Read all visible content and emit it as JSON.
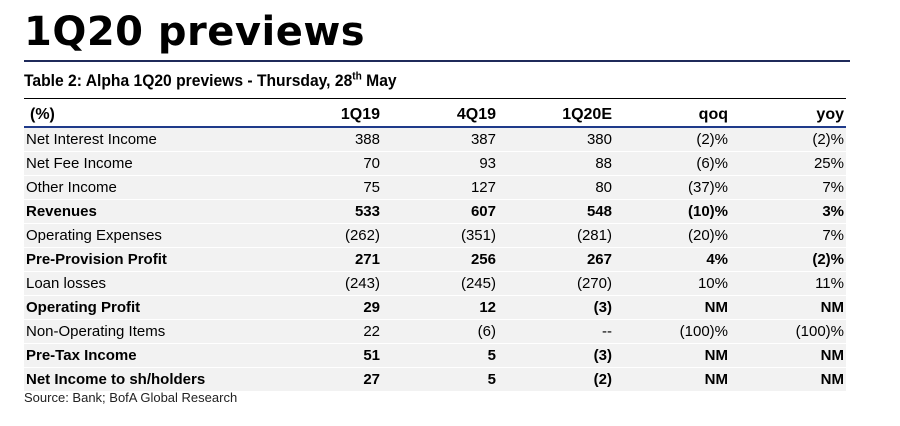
{
  "title": "1Q20 previews",
  "caption": {
    "text": "Table 2: Alpha 1Q20 previews - Thursday, 28",
    "superscript": "th",
    "suffix": " May"
  },
  "table": {
    "headers": [
      "(%)",
      "1Q19",
      "4Q19",
      "1Q20E",
      "qoq",
      "yoy"
    ],
    "rows": [
      {
        "label": "Net Interest Income",
        "values": [
          "388",
          "387",
          "380",
          "(2)%",
          "(2)%"
        ],
        "bold": false
      },
      {
        "label": "Net Fee Income",
        "values": [
          "70",
          "93",
          "88",
          "(6)%",
          "25%"
        ],
        "bold": false
      },
      {
        "label": "Other Income",
        "values": [
          "75",
          "127",
          "80",
          "(37)%",
          "7%"
        ],
        "bold": false
      },
      {
        "label": "Revenues",
        "values": [
          "533",
          "607",
          "548",
          "(10)%",
          "3%"
        ],
        "bold": true
      },
      {
        "label": "Operating Expenses",
        "values": [
          "(262)",
          "(351)",
          "(281)",
          "(20)%",
          "7%"
        ],
        "bold": false
      },
      {
        "label": "Pre-Provision Profit",
        "values": [
          "271",
          "256",
          "267",
          "4%",
          "(2)%"
        ],
        "bold": true
      },
      {
        "label": "Loan losses",
        "values": [
          "(243)",
          "(245)",
          "(270)",
          "10%",
          "11%"
        ],
        "bold": false
      },
      {
        "label": "Operating Profit",
        "values": [
          "29",
          "12",
          "(3)",
          "NM",
          "NM"
        ],
        "bold": true
      },
      {
        "label": "Non-Operating Items",
        "values": [
          "22",
          "(6)",
          "--",
          "(100)%",
          "(100)%"
        ],
        "bold": false
      },
      {
        "label": "Pre-Tax Income",
        "values": [
          "51",
          "5",
          "(3)",
          "NM",
          "NM"
        ],
        "bold": true
      },
      {
        "label": "Net Income to sh/holders",
        "values": [
          "27",
          "5",
          "(2)",
          "NM",
          "NM"
        ],
        "bold": true
      }
    ]
  },
  "source": "Source: Bank; BofA Global Research"
}
